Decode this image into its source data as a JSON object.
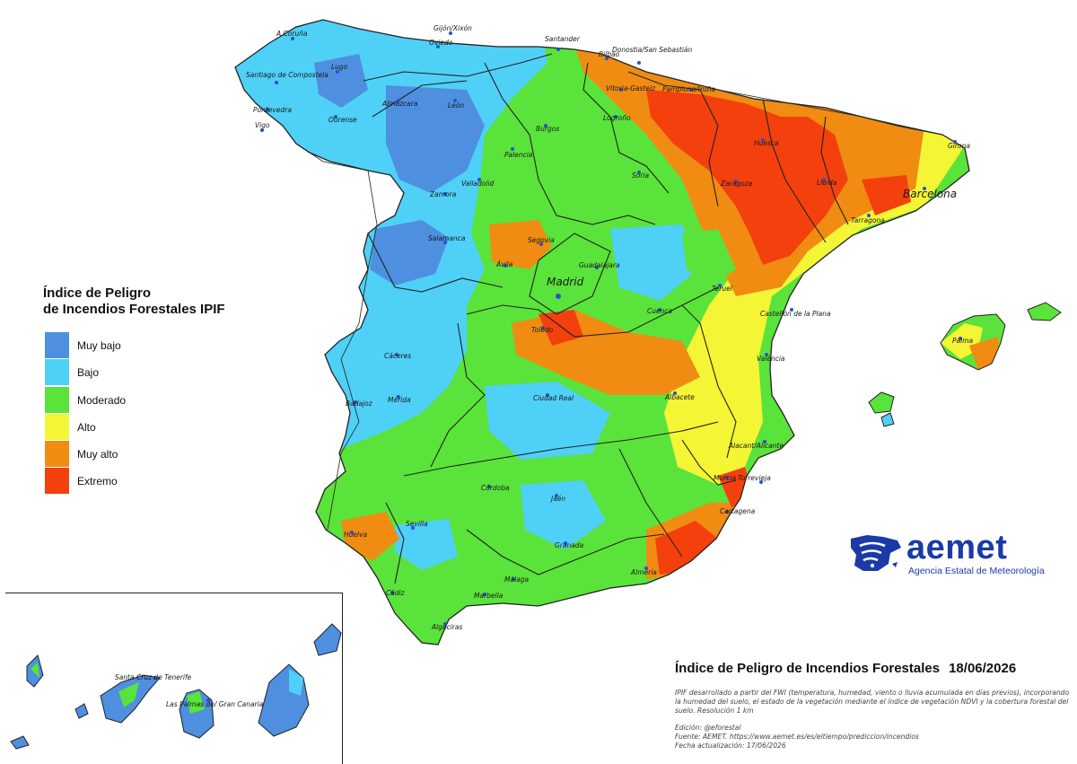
{
  "legend": {
    "title_line1": "Índice de Peligro",
    "title_line2": "de Incendios Forestales IPIF",
    "items": [
      {
        "label": "Muy bajo",
        "color": "#4e8fe0"
      },
      {
        "label": "Bajo",
        "color": "#4fd0f7"
      },
      {
        "label": "Moderado",
        "color": "#5ae33a"
      },
      {
        "label": "Alto",
        "color": "#f4f535"
      },
      {
        "label": "Muy alto",
        "color": "#f08c12"
      },
      {
        "label": "Extremo",
        "color": "#f4400d"
      }
    ]
  },
  "cities": {
    "a_coruna": "A Coruña",
    "gijon": "Gijón/Xixón",
    "oviedo": "Oviedo",
    "santander": "Santander",
    "donostia": "Donostia/San Sebastián",
    "bilbao": "Bilbao",
    "vitoria": "Vitoria-Gasteiz",
    "pamplona": "Pamplona/Iruña",
    "santiago": "Santiago de Compostela",
    "lugo": "Lugo",
    "pontevedra": "Pontevedra",
    "ourense": "Ourense",
    "vigo": "Vigo",
    "leon": "León",
    "almazcara": "Almazcara",
    "logrono": "Logroño",
    "burgos": "Burgos",
    "palencia": "Palencia",
    "huesca": "Huesca",
    "girona": "Girona",
    "soria": "Soria",
    "valladolid": "Valladolid",
    "zaragoza": "Zaragoza",
    "lleida": "Lleida",
    "barcelona": "Barcelona",
    "zamora": "Zamora",
    "tarragona": "Tarragona",
    "salamanca": "Salamanca",
    "segovia": "Segovia",
    "avila": "Ávila",
    "guadalajara": "Guadalajara",
    "madrid": "Madrid",
    "teruel": "Teruel",
    "cuenca": "Cuenca",
    "castellon": "Castellón de la Plana",
    "toledo": "Toledo",
    "palma": "Palma",
    "caceres": "Cáceres",
    "valencia": "València",
    "merida": "Mérida",
    "badajoz": "Badajoz",
    "ciudad_real": "Ciudad Real",
    "albacete": "Albacete",
    "alicante": "Alacant/Alicante",
    "cordoba": "Córdoba",
    "jaen": "Jaén",
    "murcia": "Murcia",
    "torrevieja": "Torrevieja",
    "sevilla": "Sevilla",
    "cartagena": "Cartagena",
    "huelva": "Huelva",
    "granada": "Granada",
    "almeria": "Almería",
    "malaga": "Málaga",
    "cadiz": "Cádiz",
    "marbella": "Marbella",
    "algeciras": "Algeciras",
    "santa_cruz": "Santa Cruz de Tenerife",
    "las_palmas": "Las Palmas de/ Gran Canaria"
  },
  "logo": {
    "name": "aemet",
    "subtitle": "Agencia Estatal de Meteorología",
    "color": "#1b3aa8"
  },
  "info": {
    "title": "Índice de Peligro de Incendios Forestales",
    "date": "18/06/2026",
    "description": "IPIF desarrollado a partir del FWI (temperatura, humedad, viento o lluvia acumulada en días previos), incorporando la humedad del suelo, el estado de la vegetación mediante el índice de vegetación NDVI y la cobertura forestal del suelo. Resolución 1 km",
    "edition": "Edición: @eforestal",
    "source": "Fuente: AEMET. https://www.aemet.es/es/eltiempo/prediccion/incendios",
    "updated": "Fecha actualización: 17/06/2026"
  }
}
